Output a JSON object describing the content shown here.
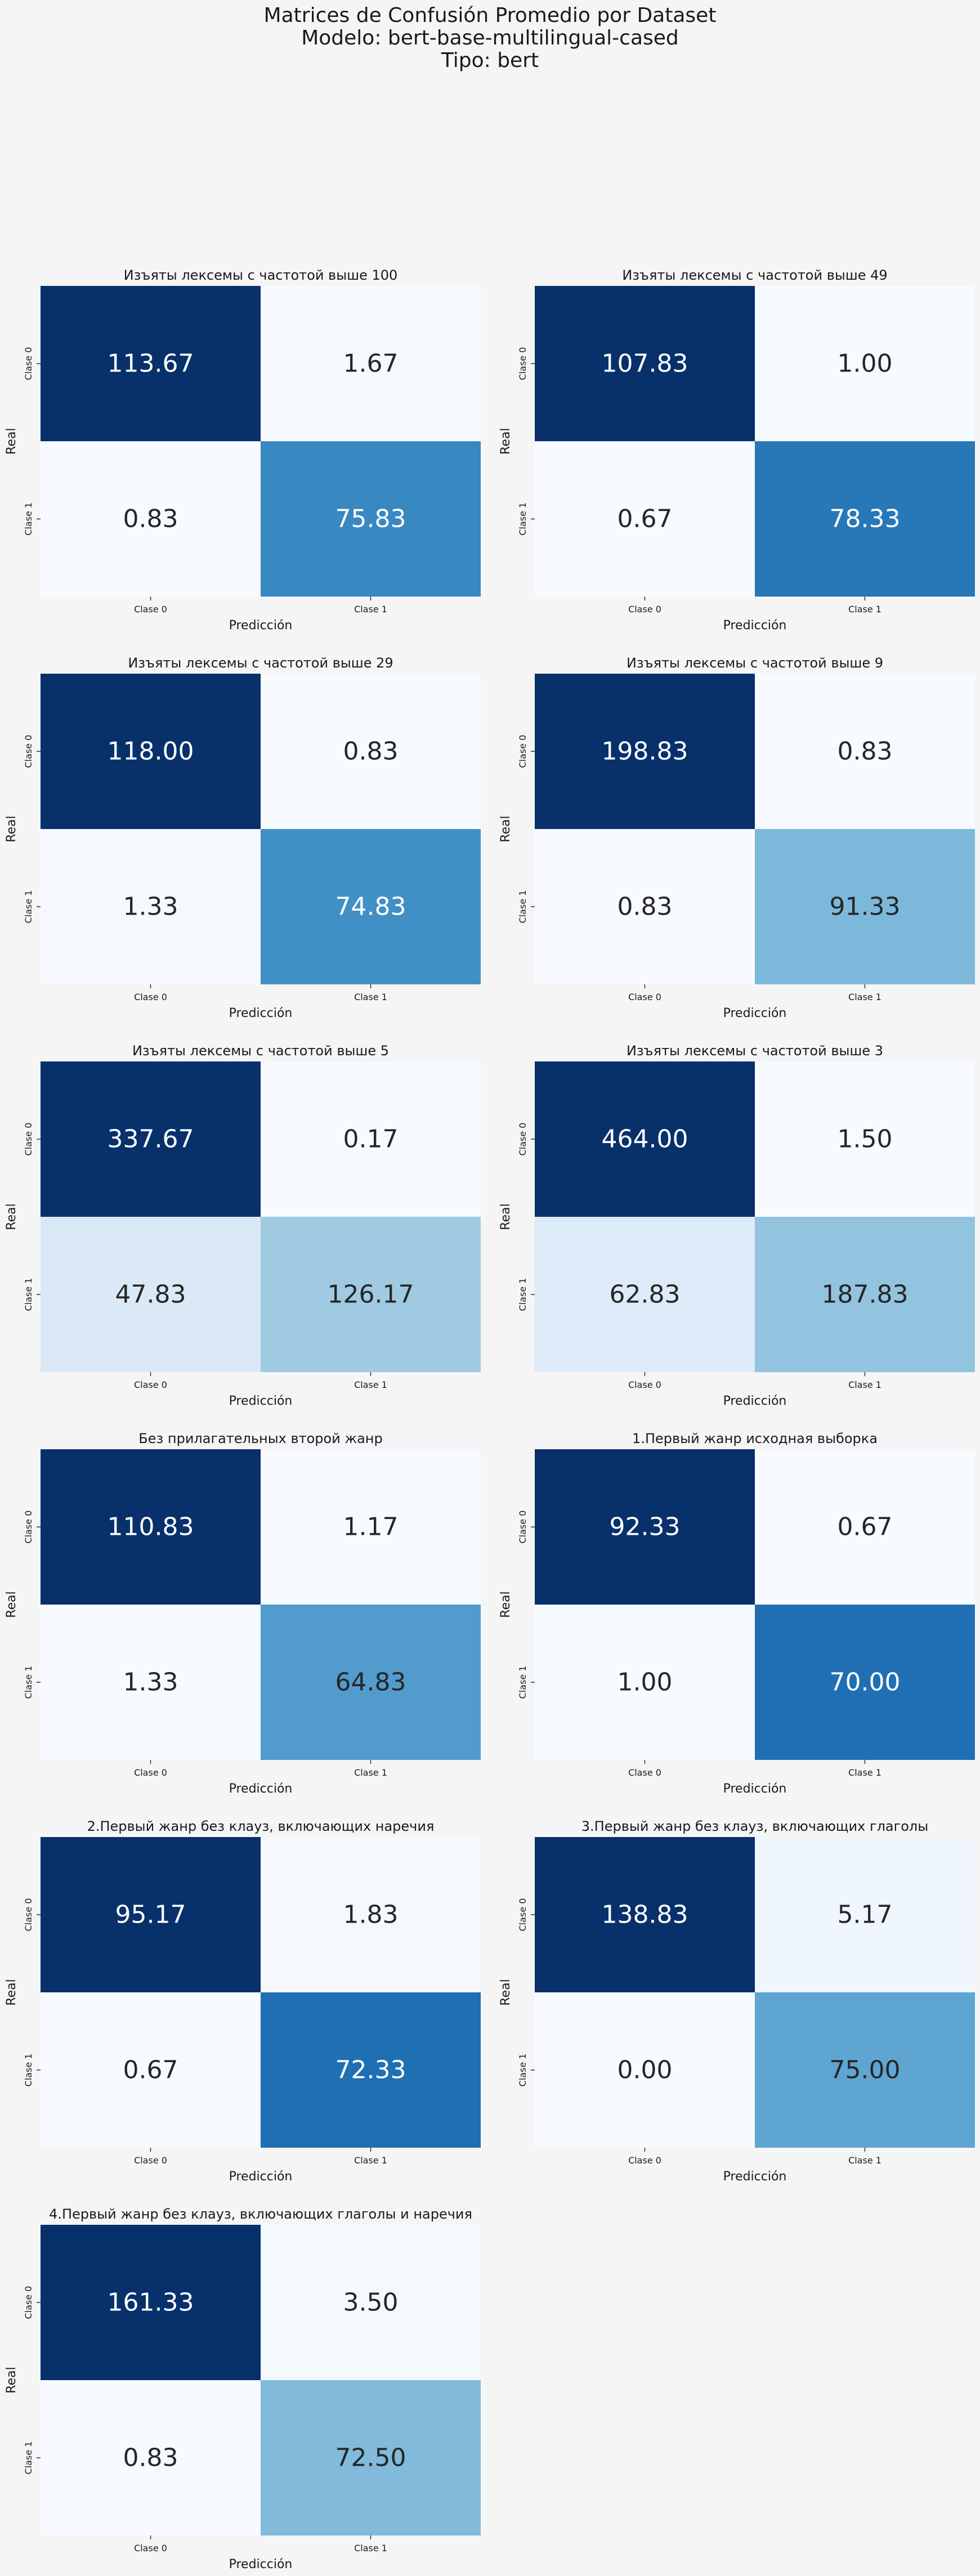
{
  "figure": {
    "title_line1": "Matrices de Confusión Promedio por Dataset",
    "title_line2": "Modelo: bert-base-multilingual-cased",
    "title_line3": "Tipo: bert"
  },
  "colors": {
    "background": "#f5f5f5",
    "colormap": "Blues",
    "text_dark": "#262626",
    "text_light": "#ffffff"
  },
  "chart_data": [
    {
      "type": "heatmap",
      "title": "Изъяты лексемы с частотой выше 100",
      "xlabel": "Predicción",
      "ylabel": "Real",
      "x_categories": [
        "Clase 0",
        "Clase 1"
      ],
      "y_categories": [
        "Clase 0",
        "Clase 1"
      ],
      "values": [
        [
          113.67,
          1.67
        ],
        [
          0.83,
          75.83
        ]
      ],
      "labels": [
        [
          "113.67",
          "1.67"
        ],
        [
          "0.83",
          "75.83"
        ]
      ],
      "colorbar": false
    },
    {
      "type": "heatmap",
      "title": "Изъяты лексемы с частотой выше 49",
      "xlabel": "Predicción",
      "ylabel": "Real",
      "x_categories": [
        "Clase 0",
        "Clase 1"
      ],
      "y_categories": [
        "Clase 0",
        "Clase 1"
      ],
      "values": [
        [
          107.83,
          1.0
        ],
        [
          0.67,
          78.33
        ]
      ],
      "labels": [
        [
          "107.83",
          "1.00"
        ],
        [
          "0.67",
          "78.33"
        ]
      ],
      "colorbar": false
    },
    {
      "type": "heatmap",
      "title": "Изъяты лексемы с частотой выше 29",
      "xlabel": "Predicción",
      "ylabel": "Real",
      "x_categories": [
        "Clase 0",
        "Clase 1"
      ],
      "y_categories": [
        "Clase 0",
        "Clase 1"
      ],
      "values": [
        [
          118.0,
          0.83
        ],
        [
          1.33,
          74.83
        ]
      ],
      "labels": [
        [
          "118.00",
          "0.83"
        ],
        [
          "1.33",
          "74.83"
        ]
      ],
      "colorbar": false
    },
    {
      "type": "heatmap",
      "title": "Изъяты лексемы с частотой выше 9",
      "xlabel": "Predicción",
      "ylabel": "Real",
      "x_categories": [
        "Clase 0",
        "Clase 1"
      ],
      "y_categories": [
        "Clase 0",
        "Clase 1"
      ],
      "values": [
        [
          198.83,
          0.83
        ],
        [
          0.83,
          91.33
        ]
      ],
      "labels": [
        [
          "198.83",
          "0.83"
        ],
        [
          "0.83",
          "91.33"
        ]
      ],
      "colorbar": false
    },
    {
      "type": "heatmap",
      "title": "Изъяты лексемы с частотой выше 5",
      "xlabel": "Predicción",
      "ylabel": "Real",
      "x_categories": [
        "Clase 0",
        "Clase 1"
      ],
      "y_categories": [
        "Clase 0",
        "Clase 1"
      ],
      "values": [
        [
          337.67,
          0.17
        ],
        [
          47.83,
          126.17
        ]
      ],
      "labels": [
        [
          "337.67",
          "0.17"
        ],
        [
          "47.83",
          "126.17"
        ]
      ],
      "colorbar": false
    },
    {
      "type": "heatmap",
      "title": "Изъяты лексемы с частотой выше 3",
      "xlabel": "Predicción",
      "ylabel": "Real",
      "x_categories": [
        "Clase 0",
        "Clase 1"
      ],
      "y_categories": [
        "Clase 0",
        "Clase 1"
      ],
      "values": [
        [
          464.0,
          1.5
        ],
        [
          62.83,
          187.83
        ]
      ],
      "labels": [
        [
          "464.00",
          "1.50"
        ],
        [
          "62.83",
          "187.83"
        ]
      ],
      "colorbar": false
    },
    {
      "type": "heatmap",
      "title": "Без прилагательных второй жанр",
      "xlabel": "Predicción",
      "ylabel": "Real",
      "x_categories": [
        "Clase 0",
        "Clase 1"
      ],
      "y_categories": [
        "Clase 0",
        "Clase 1"
      ],
      "values": [
        [
          110.83,
          1.17
        ],
        [
          1.33,
          64.83
        ]
      ],
      "labels": [
        [
          "110.83",
          "1.17"
        ],
        [
          "1.33",
          "64.83"
        ]
      ],
      "colorbar": false
    },
    {
      "type": "heatmap",
      "title": "1.Первый жанр исходная выборка",
      "xlabel": "Predicción",
      "ylabel": "Real",
      "x_categories": [
        "Clase 0",
        "Clase 1"
      ],
      "y_categories": [
        "Clase 0",
        "Clase 1"
      ],
      "values": [
        [
          92.33,
          0.67
        ],
        [
          1.0,
          70.0
        ]
      ],
      "labels": [
        [
          "92.33",
          "0.67"
        ],
        [
          "1.00",
          "70.00"
        ]
      ],
      "colorbar": false
    },
    {
      "type": "heatmap",
      "title": "2.Первый жанр без клауз, включающих наречия",
      "xlabel": "Predicción",
      "ylabel": "Real",
      "x_categories": [
        "Clase 0",
        "Clase 1"
      ],
      "y_categories": [
        "Clase 0",
        "Clase 1"
      ],
      "values": [
        [
          95.17,
          1.83
        ],
        [
          0.67,
          72.33
        ]
      ],
      "labels": [
        [
          "95.17",
          "1.83"
        ],
        [
          "0.67",
          "72.33"
        ]
      ],
      "colorbar": false
    },
    {
      "type": "heatmap",
      "title": "3.Первый жанр без клауз, включающих глаголы",
      "xlabel": "Predicción",
      "ylabel": "Real",
      "x_categories": [
        "Clase 0",
        "Clase 1"
      ],
      "y_categories": [
        "Clase 0",
        "Clase 1"
      ],
      "values": [
        [
          138.83,
          5.17
        ],
        [
          0.0,
          75.0
        ]
      ],
      "labels": [
        [
          "138.83",
          "5.17"
        ],
        [
          "0.00",
          "75.00"
        ]
      ],
      "colorbar": false
    },
    {
      "type": "heatmap",
      "title": "4.Первый жанр без клауз, включающих глаголы и наречия",
      "xlabel": "Predicción",
      "ylabel": "Real",
      "x_categories": [
        "Clase 0",
        "Clase 1"
      ],
      "y_categories": [
        "Clase 0",
        "Clase 1"
      ],
      "values": [
        [
          161.33,
          3.5
        ],
        [
          0.83,
          72.5
        ]
      ],
      "labels": [
        [
          "161.33",
          "3.50"
        ],
        [
          "0.83",
          "72.50"
        ]
      ],
      "colorbar": false
    }
  ]
}
